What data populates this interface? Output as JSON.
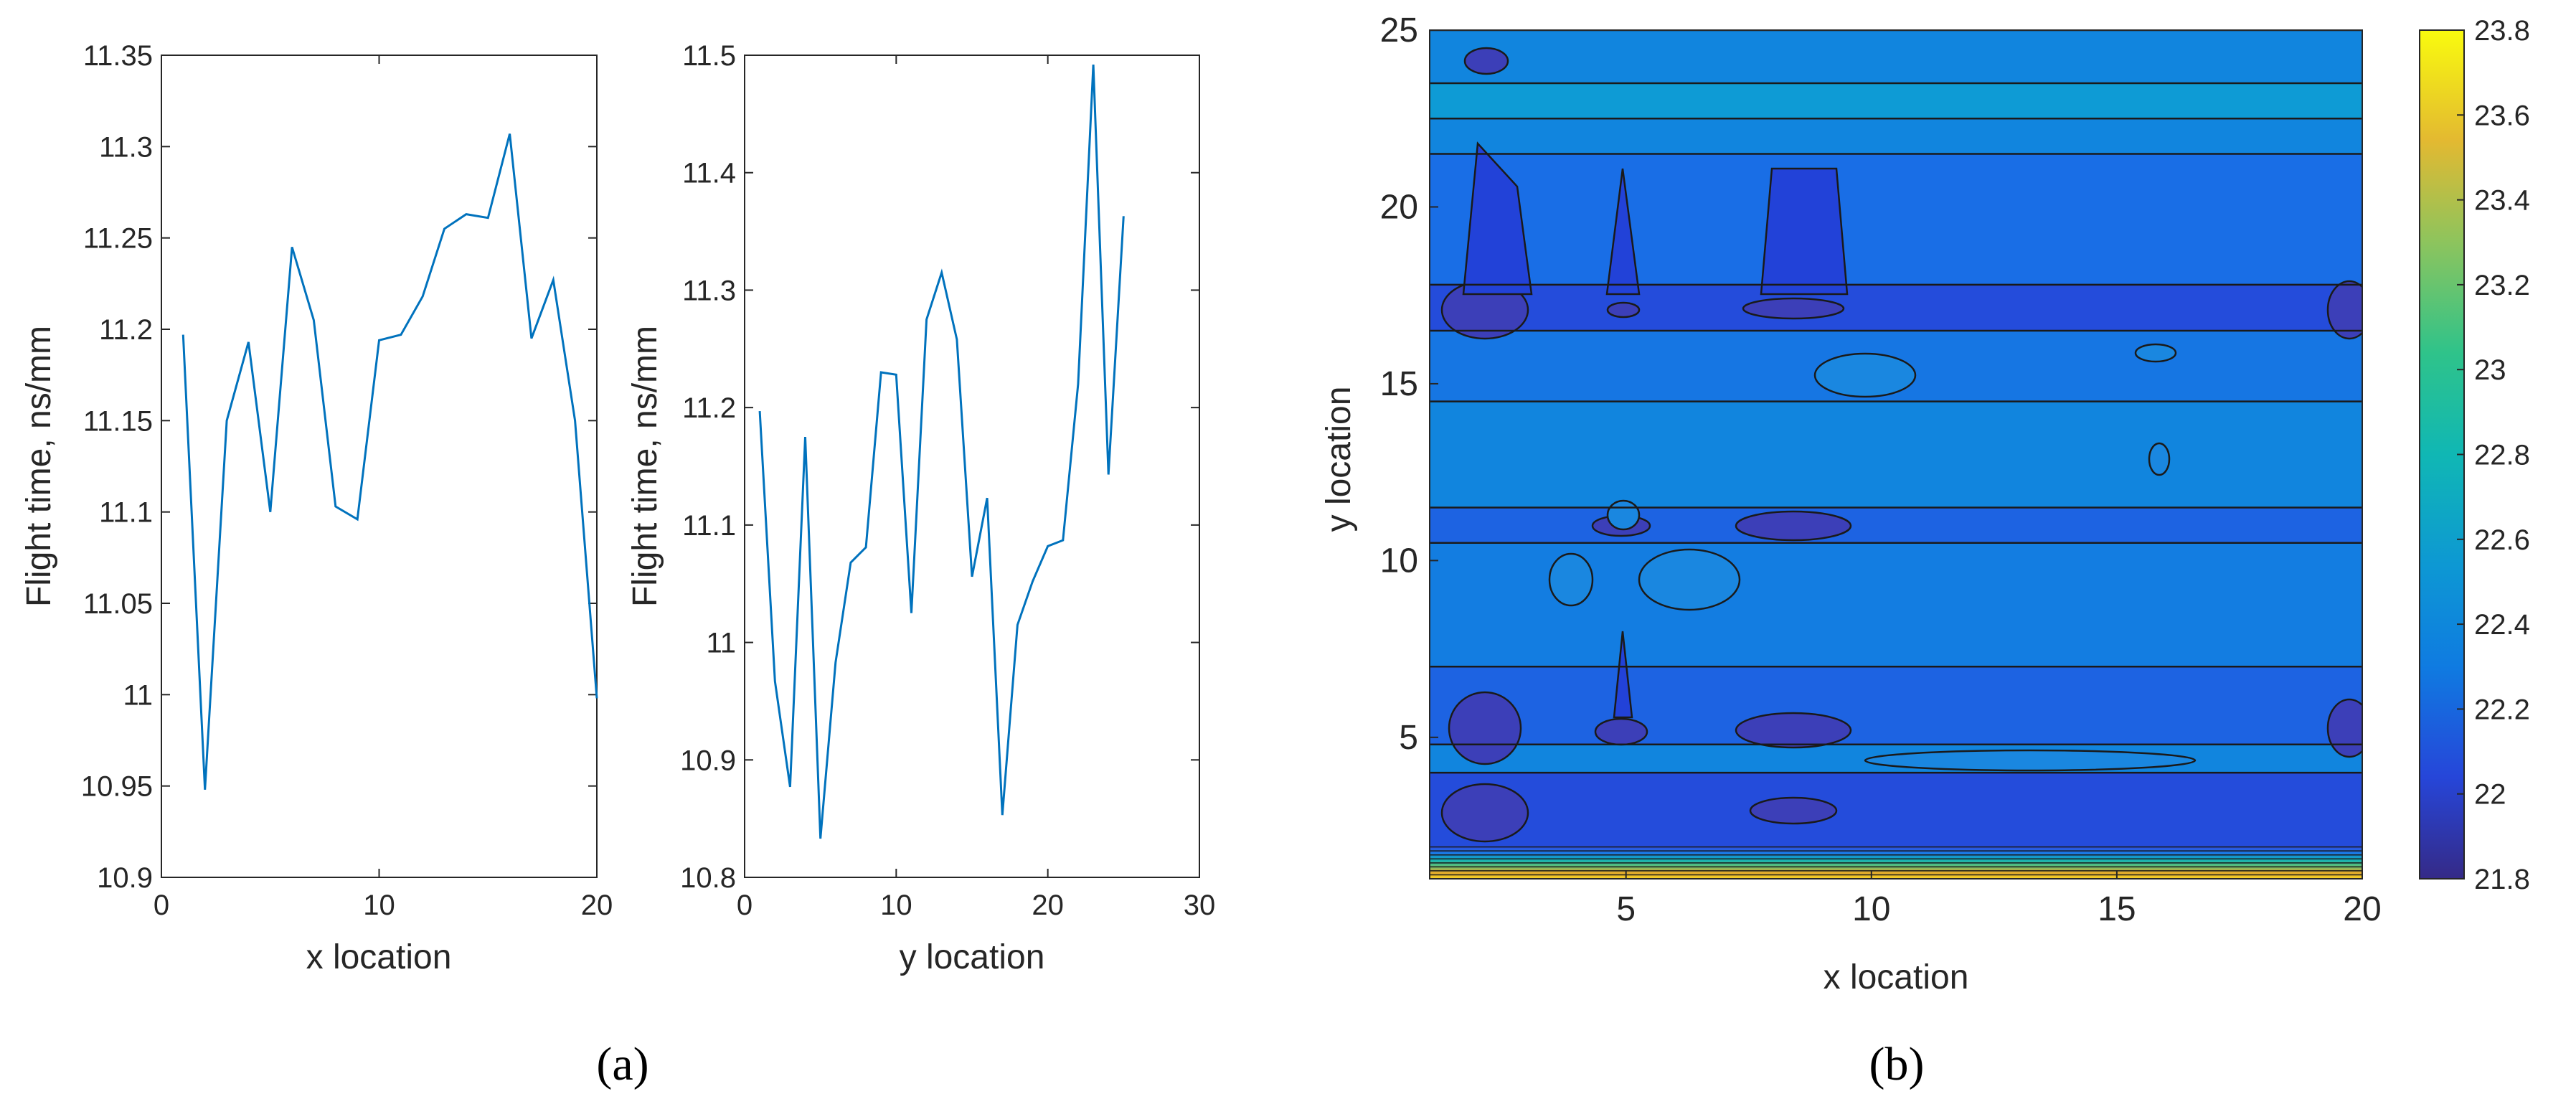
{
  "panel_labels": {
    "a": "(a)",
    "b": "(b)"
  },
  "chart_data": [
    {
      "id": "a-left",
      "type": "line",
      "xlabel": "x location",
      "ylabel": "Flight time, ns/mm",
      "xlim": [
        0,
        20
      ],
      "ylim": [
        10.9,
        11.35
      ],
      "xticks": [
        0,
        10,
        20
      ],
      "yticks": [
        10.9,
        10.95,
        11,
        11.05,
        11.1,
        11.15,
        11.2,
        11.25,
        11.3,
        11.35
      ],
      "ytick_labels": [
        "10.9",
        "10.95",
        "11",
        "11.05",
        "11.1",
        "11.15",
        "11.2",
        "11.25",
        "11.3",
        "11.35"
      ],
      "color": "#0072BD",
      "x": [
        1,
        2,
        3,
        4,
        5,
        6,
        7,
        8,
        9,
        10,
        11,
        12,
        13,
        14,
        15,
        16,
        17,
        18,
        19,
        20
      ],
      "y": [
        11.197,
        10.948,
        11.15,
        11.193,
        11.1,
        11.245,
        11.205,
        11.103,
        11.096,
        11.194,
        11.197,
        11.218,
        11.255,
        11.263,
        11.261,
        11.307,
        11.195,
        11.227,
        11.15,
        10.998
      ]
    },
    {
      "id": "a-right",
      "type": "line",
      "xlabel": "y location",
      "ylabel": "Flight time, ns/mm",
      "xlim": [
        0,
        30
      ],
      "ylim": [
        10.8,
        11.5
      ],
      "xticks": [
        0,
        10,
        20,
        30
      ],
      "yticks": [
        10.8,
        10.9,
        11,
        11.1,
        11.2,
        11.3,
        11.4,
        11.5
      ],
      "ytick_labels": [
        "10.8",
        "10.9",
        "11",
        "11.1",
        "11.2",
        "11.3",
        "11.4",
        "11.5"
      ],
      "color": "#0072BD",
      "x": [
        1,
        2,
        3,
        4,
        5,
        6,
        7,
        8,
        9,
        10,
        11,
        12,
        13,
        14,
        15,
        16,
        17,
        18,
        19,
        20,
        21,
        22,
        23,
        24,
        25
      ],
      "y": [
        11.197,
        10.967,
        10.877,
        11.175,
        10.833,
        10.983,
        11.068,
        11.081,
        11.23,
        11.228,
        11.025,
        11.275,
        11.315,
        11.258,
        11.056,
        11.123,
        10.853,
        11.015,
        11.052,
        11.082,
        11.087,
        11.22,
        11.492,
        11.143,
        11.363
      ]
    },
    {
      "id": "b",
      "type": "heatmap",
      "subtype": "filled-contour",
      "xlabel": "x location",
      "ylabel": "y location",
      "xlim": [
        1,
        20
      ],
      "ylim": [
        1,
        25
      ],
      "xticks": [
        5,
        10,
        15,
        20
      ],
      "yticks": [
        5,
        10,
        15,
        20,
        25
      ],
      "colorbar": {
        "range": [
          21.8,
          23.8
        ],
        "ticks": [
          21.8,
          22,
          22.2,
          22.4,
          22.6,
          22.8,
          23,
          23.2,
          23.4,
          23.6,
          23.8
        ],
        "tick_labels": [
          "21.8",
          "22",
          "22.2",
          "22.4",
          "22.6",
          "22.8",
          "23",
          "23.2",
          "23.4",
          "23.6",
          "23.8"
        ],
        "colormap": "parula"
      },
      "bands": [
        {
          "y_from": 1.0,
          "y_to": 1.9,
          "description": "steep gradient up to 23.8"
        },
        {
          "y_from": 1.9,
          "y_to": 4.0,
          "value": 22.05
        },
        {
          "y_from": 4.0,
          "y_to": 4.8,
          "value": 22.35
        },
        {
          "y_from": 4.8,
          "y_to": 7.0,
          "value": 22.15
        },
        {
          "y_from": 7.0,
          "y_to": 10.5,
          "value": 22.3
        },
        {
          "y_from": 10.5,
          "y_to": 11.5,
          "value": 22.15
        },
        {
          "y_from": 11.5,
          "y_to": 14.5,
          "value": 22.35
        },
        {
          "y_from": 14.5,
          "y_to": 16.5,
          "value": 22.25
        },
        {
          "y_from": 16.5,
          "y_to": 17.8,
          "value": 22.05
        },
        {
          "y_from": 17.8,
          "y_to": 21.5,
          "value": 22.2
        },
        {
          "y_from": 21.5,
          "y_to": 22.5,
          "value": 22.35
        },
        {
          "y_from": 22.5,
          "y_to": 23.5,
          "value": 22.5
        },
        {
          "y_from": 23.5,
          "y_to": 25.0,
          "value": 22.35
        }
      ]
    }
  ]
}
